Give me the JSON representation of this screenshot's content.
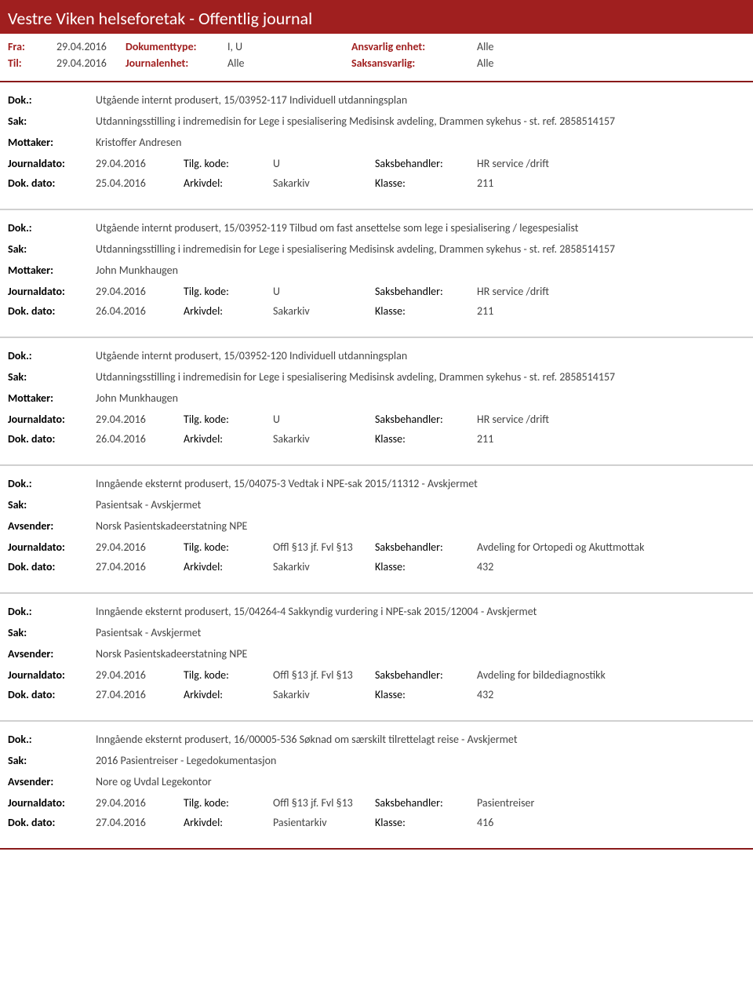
{
  "header": {
    "title": "Vestre Viken helseforetak - Offentlig journal"
  },
  "meta": {
    "fra_label": "Fra:",
    "fra_value": "29.04.2016",
    "til_label": "Til:",
    "til_value": "29.04.2016",
    "doktype_label": "Dokumenttype:",
    "doktype_value": "I, U",
    "journalenhet_label": "Journalenhet:",
    "journalenhet_value": "Alle",
    "ansvarlig_label": "Ansvarlig enhet:",
    "ansvarlig_value": "Alle",
    "saksansvarlig_label": "Saksansvarlig:",
    "saksansvarlig_value": "Alle"
  },
  "labels": {
    "dok": "Dok.:",
    "sak": "Sak:",
    "mottaker": "Mottaker:",
    "avsender": "Avsender:",
    "journaldato": "Journaldato:",
    "dokdato": "Dok. dato:",
    "tilgkode": "Tilg. kode:",
    "arkivdel": "Arkivdel:",
    "saksbehandler": "Saksbehandler:",
    "klasse": "Klasse:"
  },
  "entries": [
    {
      "dok": "Utgående internt produsert, 15/03952-117 Individuell utdanningsplan",
      "sak": "Utdanningsstilling i indremedisin for Lege i spesialisering Medisinsk avdeling, Drammen sykehus - st. ref. 2858514157",
      "party_label": "Mottaker:",
      "party_value": "Kristoffer Andresen",
      "journaldato": "29.04.2016",
      "tilgkode": "U",
      "saksbehandler": "HR service /drift",
      "dokdato": "25.04.2016",
      "arkivdel": "Sakarkiv",
      "klasse": "211"
    },
    {
      "dok": "Utgående internt produsert, 15/03952-119 Tilbud om fast ansettelse som lege i spesialisering / legespesialist",
      "sak": "Utdanningsstilling i indremedisin for Lege i spesialisering Medisinsk avdeling, Drammen sykehus - st. ref. 2858514157",
      "party_label": "Mottaker:",
      "party_value": "John Munkhaugen",
      "journaldato": "29.04.2016",
      "tilgkode": "U",
      "saksbehandler": "HR service /drift",
      "dokdato": "26.04.2016",
      "arkivdel": "Sakarkiv",
      "klasse": "211"
    },
    {
      "dok": "Utgående internt produsert, 15/03952-120 Individuell utdanningsplan",
      "sak": "Utdanningsstilling i indremedisin for Lege i spesialisering Medisinsk avdeling, Drammen sykehus - st. ref. 2858514157",
      "party_label": "Mottaker:",
      "party_value": "John Munkhaugen",
      "journaldato": "29.04.2016",
      "tilgkode": "U",
      "saksbehandler": "HR service /drift",
      "dokdato": "26.04.2016",
      "arkivdel": "Sakarkiv",
      "klasse": "211"
    },
    {
      "dok": "Inngående eksternt produsert, 15/04075-3 Vedtak i NPE-sak 2015/11312 - Avskjermet",
      "sak": "Pasientsak - Avskjermet",
      "party_label": "Avsender:",
      "party_value": "Norsk Pasientskadeerstatning NPE",
      "journaldato": "29.04.2016",
      "tilgkode": "Offl §13 jf. Fvl §13",
      "saksbehandler": "Avdeling for Ortopedi og Akuttmottak",
      "dokdato": "27.04.2016",
      "arkivdel": "Sakarkiv",
      "klasse": "432"
    },
    {
      "dok": "Inngående eksternt produsert, 15/04264-4 Sakkyndig vurdering i NPE-sak 2015/12004 - Avskjermet",
      "sak": "Pasientsak - Avskjermet",
      "party_label": "Avsender:",
      "party_value": "Norsk Pasientskadeerstatning NPE",
      "journaldato": "29.04.2016",
      "tilgkode": "Offl §13 jf. Fvl §13",
      "saksbehandler": "Avdeling for bildediagnostikk",
      "dokdato": "27.04.2016",
      "arkivdel": "Sakarkiv",
      "klasse": "432"
    },
    {
      "dok": "Inngående eksternt produsert, 16/00005-536 Søknad om særskilt tilrettelagt reise - Avskjermet",
      "sak": "2016 Pasientreiser - Legedokumentasjon",
      "party_label": "Avsender:",
      "party_value": "Nore og Uvdal Legekontor",
      "journaldato": "29.04.2016",
      "tilgkode": "Offl §13 jf. Fvl §13",
      "saksbehandler": "Pasientreiser",
      "dokdato": "27.04.2016",
      "arkivdel": "Pasientarkiv",
      "klasse": "416"
    }
  ]
}
